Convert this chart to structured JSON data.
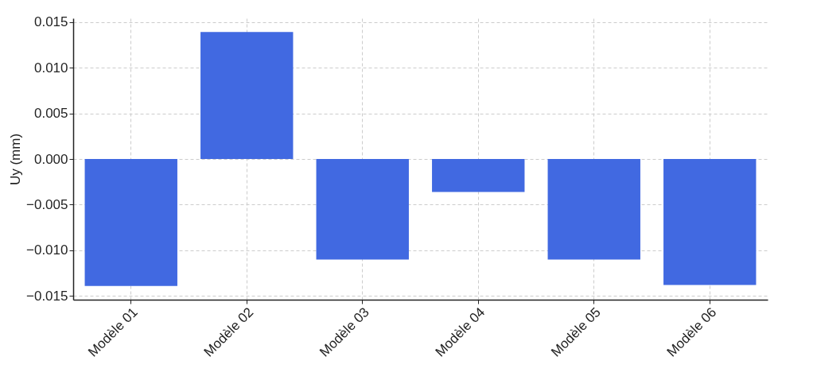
{
  "chart_data": {
    "type": "bar",
    "ylabel": "Uy (mm)",
    "categories": [
      "Modèle 01",
      "Modèle 02",
      "Modèle 03",
      "Modèle 04",
      "Modèle 05",
      "Modèle 06"
    ],
    "values": [
      -0.0139,
      0.0139,
      -0.011,
      -0.0036,
      -0.011,
      -0.0138
    ],
    "color": "#4169e1",
    "ylim": [
      -0.0154,
      0.0154
    ],
    "yticks": [
      {
        "value": -0.015,
        "label": "−0.015"
      },
      {
        "value": -0.01,
        "label": "−0.010"
      },
      {
        "value": -0.005,
        "label": "−0.005"
      },
      {
        "value": 0,
        "label": "0.000"
      },
      {
        "value": 0.005,
        "label": "0.005"
      },
      {
        "value": 0.01,
        "label": "0.010"
      },
      {
        "value": 0.015,
        "label": "0.015"
      }
    ],
    "grid": true
  }
}
